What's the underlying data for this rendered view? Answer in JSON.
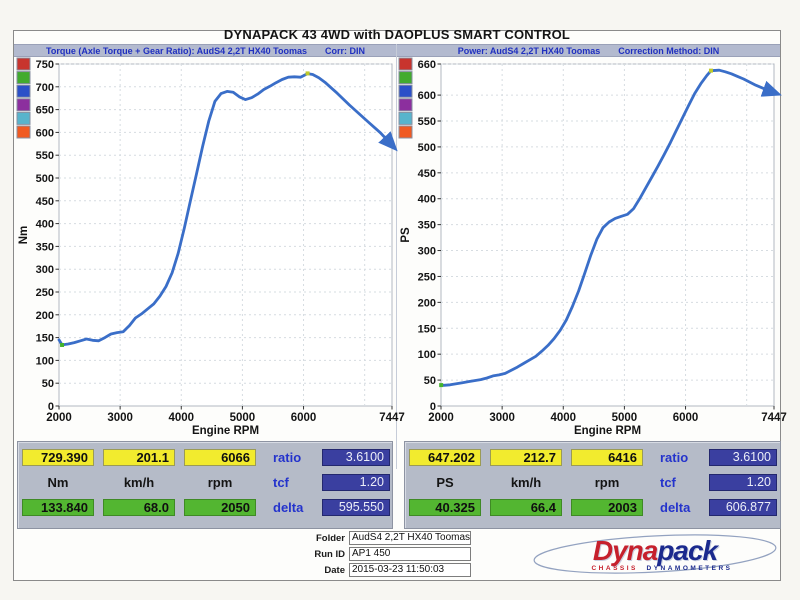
{
  "page": {
    "title": "DYNAPACK 43 4WD with DAOPLUS SMART CONTROL"
  },
  "chart_data": [
    {
      "type": "line",
      "title": "Torque (Axle Torque + Gear Ratio): AudS4 2,2T HX40 Toomas",
      "correction": "Corr: DIN",
      "xlabel": "Engine RPM",
      "ylabel": "Nm",
      "xlim": [
        2000,
        7447
      ],
      "ylim": [
        0,
        750
      ],
      "xticks": [
        {
          "v": 2000,
          "label": "2000"
        },
        {
          "v": 3000,
          "label": "3000"
        },
        {
          "v": 4000,
          "label": "4000"
        },
        {
          "v": 5000,
          "label": "5000"
        },
        {
          "v": 6000,
          "label": "6000"
        },
        {
          "v": 7447,
          "label": "7447"
        }
      ],
      "yticks": [
        0,
        50,
        100,
        150,
        200,
        250,
        300,
        350,
        400,
        450,
        500,
        550,
        600,
        650,
        700,
        750
      ],
      "grid_x": [
        3000,
        4000,
        5000,
        6000,
        7000
      ],
      "grid": true,
      "legend_position": "top-left",
      "legend_colors": [
        "#c8342e",
        "#42ab2e",
        "#2b50c8",
        "#8c2f9e",
        "#58b4cc",
        "#f05a22"
      ],
      "line_color": "#3a6ec8",
      "series": [
        {
          "name": "Torque (Nm)",
          "x": [
            2000,
            2050,
            2150,
            2250,
            2350,
            2450,
            2550,
            2650,
            2750,
            2850,
            2950,
            3050,
            3150,
            3250,
            3350,
            3450,
            3550,
            3650,
            3750,
            3850,
            3950,
            4050,
            4150,
            4250,
            4350,
            4450,
            4550,
            4650,
            4750,
            4850,
            4950,
            5050,
            5150,
            5250,
            5350,
            5450,
            5550,
            5650,
            5750,
            5850,
            5950,
            6066,
            6150,
            6250,
            6350,
            6450,
            6550,
            6650,
            6750,
            6850,
            6950,
            7050,
            7150,
            7250,
            7350,
            7447
          ],
          "y": [
            145,
            134,
            136,
            139,
            143,
            147,
            144,
            143,
            150,
            158,
            161,
            163,
            176,
            193,
            202,
            213,
            224,
            241,
            262,
            292,
            335,
            390,
            450,
            510,
            570,
            625,
            668,
            685,
            690,
            688,
            678,
            672,
            676,
            684,
            694,
            701,
            709,
            716,
            721,
            722,
            721,
            729,
            727,
            720,
            710,
            698,
            686,
            673,
            660,
            648,
            636,
            624,
            612,
            600,
            586,
            572
          ]
        }
      ],
      "markers": [
        {
          "x": 2050,
          "y": 133.84,
          "color": "#43b32c"
        },
        {
          "x": 6066,
          "y": 729.39,
          "color": "#c0ca2a"
        }
      ]
    },
    {
      "type": "line",
      "title": "Power: AudS4 2,2T HX40 Toomas",
      "correction": "Correction Method: DIN",
      "xlabel": "Engine RPM",
      "ylabel": "PS",
      "xlim": [
        2000,
        7447
      ],
      "ylim": [
        0,
        660
      ],
      "xticks": [
        {
          "v": 2000,
          "label": "2000"
        },
        {
          "v": 3000,
          "label": "3000"
        },
        {
          "v": 4000,
          "label": "4000"
        },
        {
          "v": 5000,
          "label": "5000"
        },
        {
          "v": 6000,
          "label": "6000"
        },
        {
          "v": 7447,
          "label": "7447"
        }
      ],
      "yticks": [
        0,
        50,
        100,
        150,
        200,
        250,
        300,
        350,
        400,
        450,
        500,
        550,
        600,
        660
      ],
      "grid_x": [
        3000,
        4000,
        5000,
        6000,
        7000
      ],
      "grid": true,
      "legend_position": "top-left",
      "legend_colors": [
        "#c8342e",
        "#42ab2e",
        "#2b50c8",
        "#8c2f9e",
        "#58b4cc",
        "#f05a22"
      ],
      "line_color": "#3a6ec8",
      "series": [
        {
          "name": "Power (PS)",
          "x": [
            2000,
            2050,
            2150,
            2250,
            2350,
            2450,
            2550,
            2650,
            2750,
            2850,
            2950,
            3050,
            3150,
            3250,
            3350,
            3450,
            3550,
            3650,
            3750,
            3850,
            3950,
            4050,
            4150,
            4250,
            4350,
            4450,
            4550,
            4650,
            4750,
            4850,
            4950,
            5050,
            5150,
            5250,
            5350,
            5450,
            5550,
            5650,
            5750,
            5850,
            5950,
            6050,
            6150,
            6250,
            6350,
            6416,
            6550,
            6650,
            6750,
            6850,
            6950,
            7050,
            7150,
            7250,
            7350,
            7447
          ],
          "y": [
            40,
            40,
            41,
            43,
            45,
            47,
            49,
            51,
            54,
            58,
            60,
            63,
            69,
            75,
            82,
            89,
            96,
            106,
            117,
            130,
            146,
            166,
            192,
            222,
            256,
            291,
            322,
            344,
            355,
            362,
            366,
            370,
            381,
            400,
            421,
            442,
            463,
            485,
            508,
            532,
            556,
            580,
            603,
            622,
            638,
            647,
            648,
            645,
            641,
            636,
            631,
            625,
            619,
            614,
            609,
            605
          ]
        }
      ],
      "markers": [
        {
          "x": 2003,
          "y": 40.325,
          "color": "#43b32c"
        },
        {
          "x": 6416,
          "y": 647.2,
          "color": "#c0ca2a"
        }
      ]
    }
  ],
  "readouts": [
    {
      "peak": [
        "729.390",
        "201.1",
        "6066"
      ],
      "units": [
        "Nm",
        "km/h",
        "rpm"
      ],
      "start": [
        "133.840",
        "68.0",
        "2050"
      ],
      "params": [
        {
          "label": "ratio",
          "value": "3.6100"
        },
        {
          "label": "tcf",
          "value": "1.20"
        },
        {
          "label": "delta",
          "value": "595.550"
        }
      ]
    },
    {
      "peak": [
        "647.202",
        "212.7",
        "6416"
      ],
      "units": [
        "PS",
        "km/h",
        "rpm"
      ],
      "start": [
        "40.325",
        "66.4",
        "2003"
      ],
      "params": [
        {
          "label": "ratio",
          "value": "3.6100"
        },
        {
          "label": "tcf",
          "value": "1.20"
        },
        {
          "label": "delta",
          "value": "606.877"
        }
      ]
    }
  ],
  "footer": {
    "fields": [
      {
        "label": "Folder",
        "value": "AudS4 2,2T HX40 Toomas"
      },
      {
        "label": "Run ID",
        "value": "AP1 450"
      },
      {
        "label": "Date",
        "value": "2015-03-23 11:50:03"
      }
    ],
    "logo": {
      "word1": "Dyna",
      "word2": "pack",
      "sub1": "CHASSIS",
      "sub2": "DYNAMOMETERS"
    }
  }
}
